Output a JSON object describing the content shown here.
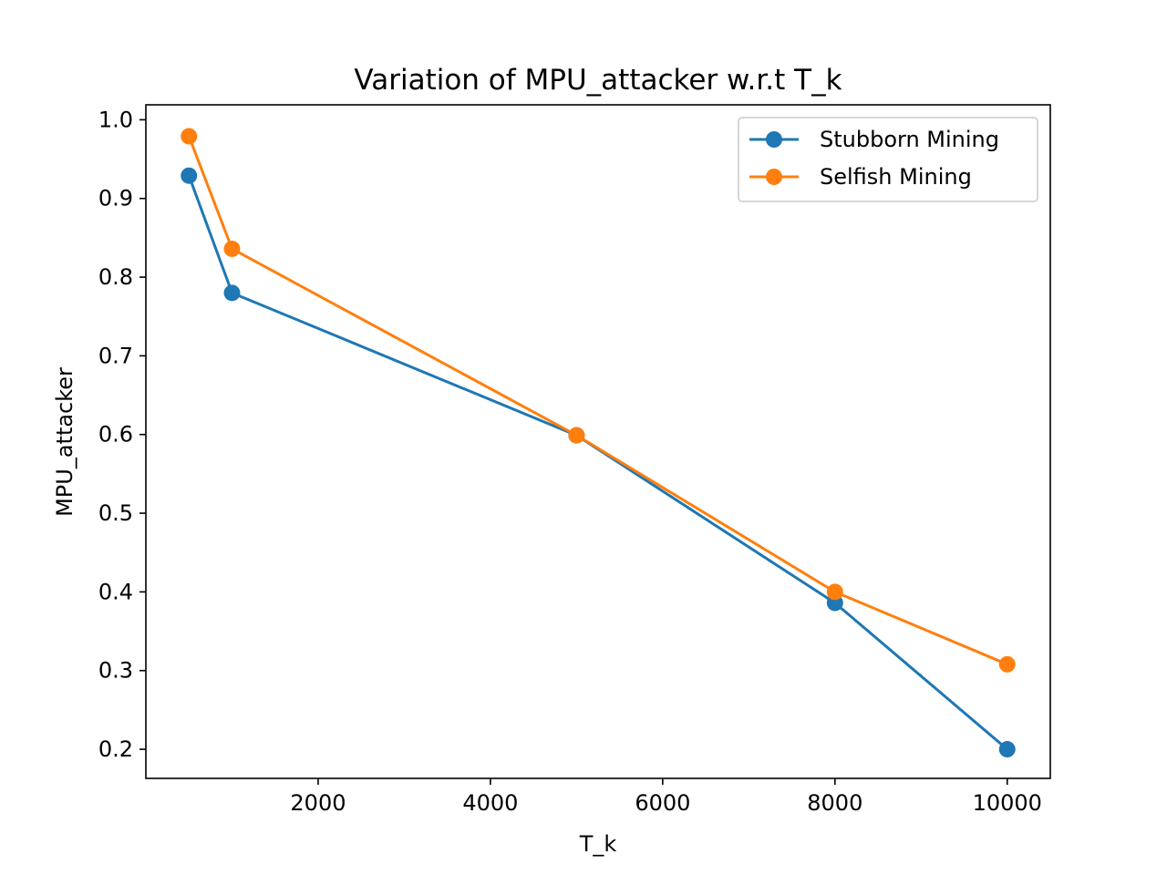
{
  "chart_data": {
    "type": "line",
    "title": "Variation of MPU_attacker w.r.t T_k",
    "xlabel": "T_k",
    "ylabel": "MPU_attacker",
    "xlim": [
      0,
      10500
    ],
    "ylim": [
      0.163,
      1.019
    ],
    "xticks": [
      2000,
      4000,
      6000,
      8000,
      10000
    ],
    "yticks": [
      0.2,
      0.3,
      0.4,
      0.5,
      0.6,
      0.7,
      0.8,
      0.9,
      1.0
    ],
    "xtick_labels": [
      "2000",
      "4000",
      "6000",
      "8000",
      "10000"
    ],
    "ytick_labels": [
      "0.2",
      "0.3",
      "0.4",
      "0.5",
      "0.6",
      "0.7",
      "0.8",
      "0.9",
      "1.0"
    ],
    "grid": false,
    "legend_position": "top-right",
    "series": [
      {
        "name": "Stubborn Mining",
        "color": "#1f77b4",
        "marker": "circle",
        "x": [
          500,
          1000,
          5000,
          8000,
          10000
        ],
        "y": [
          0.929,
          0.78,
          0.599,
          0.386,
          0.2
        ]
      },
      {
        "name": "Selfish Mining",
        "color": "#ff7f0e",
        "marker": "circle",
        "x": [
          500,
          1000,
          5000,
          8000,
          10000
        ],
        "y": [
          0.979,
          0.836,
          0.599,
          0.4,
          0.308
        ]
      }
    ]
  }
}
